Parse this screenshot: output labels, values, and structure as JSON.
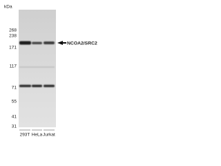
{
  "units": "kDa",
  "markers": [
    "268",
    "238",
    "171",
    "117",
    "71",
    "55",
    "41",
    "31"
  ],
  "target_label": "NCOA2/SRC2",
  "lanes": [
    "293T",
    "HeLa",
    "Jurkat"
  ]
}
